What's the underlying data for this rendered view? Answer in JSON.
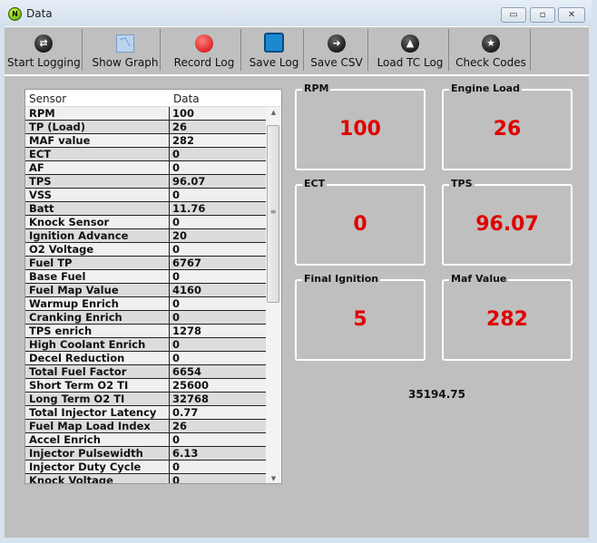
{
  "window": {
    "title": "Data",
    "minimize": "▭",
    "maximize": "▫",
    "close": "✕"
  },
  "toolbar": [
    {
      "label": "Start Logging",
      "icon": "swap-arrows-icon"
    },
    {
      "label": "Show Graph",
      "icon": "graph-icon"
    },
    {
      "label": "Record Log",
      "icon": "record-icon"
    },
    {
      "label": "Save Log",
      "icon": "floppy-disk-icon"
    },
    {
      "label": "Save CSV",
      "icon": "arrow-right-icon"
    },
    {
      "label": "Load TC Log",
      "icon": "arrow-up-icon"
    },
    {
      "label": "Check Codes",
      "icon": "star-icon"
    }
  ],
  "table": {
    "headers": [
      "Sensor",
      "Data"
    ],
    "rows": [
      [
        "RPM",
        "100"
      ],
      [
        "TP (Load)",
        "26"
      ],
      [
        "MAF value",
        "282"
      ],
      [
        "ECT",
        "0"
      ],
      [
        "AF",
        "0"
      ],
      [
        "TPS",
        "96.07"
      ],
      [
        "VSS",
        "0"
      ],
      [
        "Batt",
        "11.76"
      ],
      [
        "Knock Sensor",
        "0"
      ],
      [
        "Ignition Advance",
        "20"
      ],
      [
        "O2 Voltage",
        "0"
      ],
      [
        "Fuel TP",
        "6767"
      ],
      [
        "Base Fuel",
        "0"
      ],
      [
        "Fuel Map Value",
        "4160"
      ],
      [
        "Warmup Enrich",
        "0"
      ],
      [
        "Cranking Enrich",
        "0"
      ],
      [
        "TPS enrich",
        "1278"
      ],
      [
        "High Coolant Enrich",
        "0"
      ],
      [
        "Decel Reduction",
        "0"
      ],
      [
        "Total Fuel Factor",
        "6654"
      ],
      [
        "Short Term O2 TI",
        "25600"
      ],
      [
        "Long Term O2 TI",
        "32768"
      ],
      [
        "Total Injector Latency",
        "0.77"
      ],
      [
        "Fuel Map Load Index",
        "26"
      ],
      [
        "Accel Enrich",
        "0"
      ],
      [
        "Injector Pulsewidth",
        "6.13"
      ],
      [
        "Injector Duty Cycle",
        "0"
      ],
      [
        "Knock Voltage",
        "0"
      ]
    ]
  },
  "gauges": [
    {
      "title": "RPM",
      "value": "100"
    },
    {
      "title": "Engine Load",
      "value": "26"
    },
    {
      "title": "ECT",
      "value": "0"
    },
    {
      "title": "TPS",
      "value": "96.07"
    },
    {
      "title": "Final Ignition",
      "value": "5"
    },
    {
      "title": "Maf Value",
      "value": "282"
    }
  ],
  "total": "35194.75",
  "colors": {
    "value": "#e00000",
    "background": "#bfbfbf"
  }
}
